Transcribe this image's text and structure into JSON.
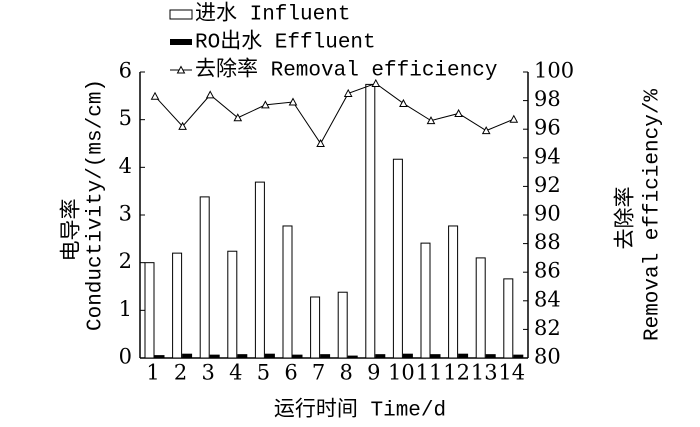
{
  "chart_data": {
    "type": "bar",
    "xlabel": "运行时间 Time/d",
    "ylabel": [
      "电导率",
      "Conductivity/(ms/cm)"
    ],
    "y2label": [
      "去除率",
      "Removal efficiency/%"
    ],
    "categories": [
      "1",
      "2",
      "3",
      "4",
      "5",
      "6",
      "7",
      "8",
      "9",
      "10",
      "11",
      "12",
      "13",
      "14"
    ],
    "series": [
      {
        "name": "进水 Influent",
        "type": "bar",
        "color": "#ffffff",
        "values": [
          2.0,
          2.2,
          3.38,
          2.24,
          3.69,
          2.77,
          1.28,
          1.38,
          5.74,
          4.17,
          2.41,
          2.77,
          2.1,
          1.66
        ]
      },
      {
        "name": "RO出水 Effluent",
        "type": "bar",
        "color": "#000000",
        "values": [
          0.05,
          0.08,
          0.06,
          0.07,
          0.08,
          0.06,
          0.07,
          0.04,
          0.07,
          0.08,
          0.07,
          0.08,
          0.07,
          0.06
        ]
      },
      {
        "name": "去除率 Removal efficiency",
        "type": "line",
        "axis": "y2",
        "color": "#000000",
        "values": [
          98.3,
          96.2,
          98.4,
          96.8,
          97.7,
          97.9,
          95.0,
          98.5,
          99.2,
          97.8,
          96.6,
          97.1,
          95.9,
          96.7
        ]
      }
    ],
    "ylim": [
      0,
      6
    ],
    "yticks": [
      0,
      1,
      2,
      3,
      4,
      5,
      6
    ],
    "y2lim": [
      80,
      100
    ],
    "y2ticks": [
      80,
      82,
      84,
      86,
      88,
      90,
      92,
      94,
      96,
      98,
      100
    ],
    "legend": "top-left"
  }
}
